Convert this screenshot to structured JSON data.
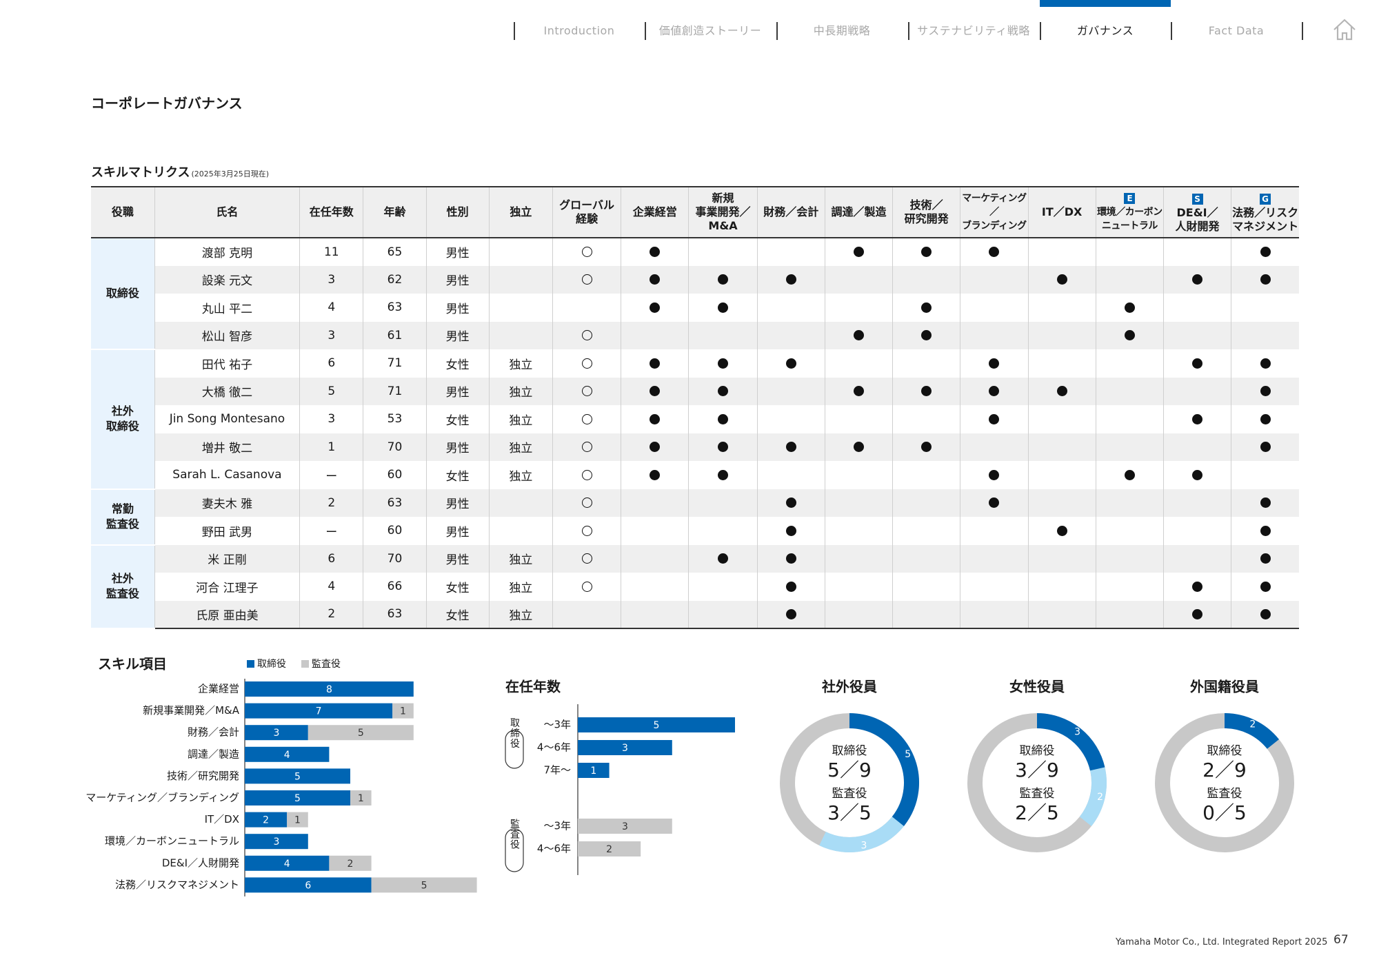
{
  "nav": {
    "tabs": [
      {
        "label": "Introduction"
      },
      {
        "label": "価値創造ストーリー"
      },
      {
        "label": "中長期戦略"
      },
      {
        "label": "サステナビリティ戦略"
      },
      {
        "label": "ガバナンス"
      },
      {
        "label": "Fact Data"
      }
    ],
    "active_index": 4,
    "accent_color": "#0065b3"
  },
  "page_title": "コーポレートガバナンス",
  "matrix": {
    "title": "スキルマトリクス",
    "date_note": "(2025年3月25日現在)",
    "headers": {
      "role": "役職",
      "name": "氏名",
      "tenure": "在任年数",
      "age": "年齢",
      "gender": "性別",
      "independent": "独立",
      "global": [
        "グローバル",
        "経験"
      ],
      "s1": [
        "企業経営"
      ],
      "s2": [
        "新規",
        "事業開発／",
        "M&A"
      ],
      "s3": [
        "財務／会計"
      ],
      "s4": [
        "調達／製造"
      ],
      "s5": [
        "技術／",
        "研究開発"
      ],
      "s6": [
        "マーケティング／",
        "ブランディング"
      ],
      "s7": [
        "IT／DX"
      ],
      "s8": [
        "環境／カーボン",
        "ニュートラル"
      ],
      "s9": [
        "DE&I／",
        "人財開発"
      ],
      "s10": [
        "法務／リスク",
        "マネジメント"
      ],
      "esg_e": "E",
      "esg_s": "S",
      "esg_g": "G"
    },
    "roles": [
      {
        "label": [
          "取締役"
        ],
        "rowspan": 4
      },
      {
        "label": [
          "社外",
          "取締役"
        ],
        "rowspan": 5
      },
      {
        "label": [
          "常勤",
          "監査役"
        ],
        "rowspan": 2
      },
      {
        "label": [
          "社外",
          "監査役"
        ],
        "rowspan": 3
      }
    ],
    "rows": [
      {
        "name": "渡部 克明",
        "tenure": "11",
        "age": "65",
        "gender": "男性",
        "independent": "",
        "global": true,
        "skills": [
          1,
          0,
          0,
          1,
          1,
          1,
          0,
          0,
          0,
          1
        ]
      },
      {
        "name": "設楽 元文",
        "tenure": "3",
        "age": "62",
        "gender": "男性",
        "independent": "",
        "global": true,
        "skills": [
          1,
          1,
          1,
          0,
          0,
          0,
          1,
          0,
          1,
          1
        ]
      },
      {
        "name": "丸山 平二",
        "tenure": "4",
        "age": "63",
        "gender": "男性",
        "independent": "",
        "global": false,
        "skills": [
          1,
          1,
          0,
          0,
          1,
          0,
          0,
          1,
          0,
          0
        ]
      },
      {
        "name": "松山 智彦",
        "tenure": "3",
        "age": "61",
        "gender": "男性",
        "independent": "",
        "global": true,
        "skills": [
          0,
          0,
          0,
          1,
          1,
          0,
          0,
          1,
          0,
          0
        ]
      },
      {
        "name": "田代 祐子",
        "tenure": "6",
        "age": "71",
        "gender": "女性",
        "independent": "独立",
        "global": true,
        "skills": [
          1,
          1,
          1,
          0,
          0,
          1,
          0,
          0,
          1,
          1
        ]
      },
      {
        "name": "大橋 徹二",
        "tenure": "5",
        "age": "71",
        "gender": "男性",
        "independent": "独立",
        "global": true,
        "skills": [
          1,
          1,
          0,
          1,
          1,
          1,
          1,
          0,
          0,
          1
        ]
      },
      {
        "name": "Jin Song Montesano",
        "tenure": "3",
        "age": "53",
        "gender": "女性",
        "independent": "独立",
        "global": true,
        "skills": [
          1,
          1,
          0,
          0,
          0,
          1,
          0,
          0,
          1,
          1
        ]
      },
      {
        "name": "増井 敬二",
        "tenure": "1",
        "age": "70",
        "gender": "男性",
        "independent": "独立",
        "global": true,
        "skills": [
          1,
          1,
          1,
          1,
          1,
          0,
          0,
          0,
          0,
          1
        ]
      },
      {
        "name": "Sarah L. Casanova",
        "tenure": "ー",
        "age": "60",
        "gender": "女性",
        "independent": "独立",
        "global": true,
        "skills": [
          1,
          1,
          0,
          0,
          0,
          1,
          0,
          1,
          1,
          0
        ]
      },
      {
        "name": "妻夫木 雅",
        "tenure": "2",
        "age": "63",
        "gender": "男性",
        "independent": "",
        "global": true,
        "skills": [
          0,
          0,
          1,
          0,
          0,
          1,
          0,
          0,
          0,
          1
        ]
      },
      {
        "name": "野田 武男",
        "tenure": "ー",
        "age": "60",
        "gender": "男性",
        "independent": "",
        "global": true,
        "skills": [
          0,
          0,
          1,
          0,
          0,
          0,
          1,
          0,
          0,
          1
        ]
      },
      {
        "name": "米 正剛",
        "tenure": "6",
        "age": "70",
        "gender": "男性",
        "independent": "独立",
        "global": true,
        "skills": [
          0,
          1,
          1,
          0,
          0,
          0,
          0,
          0,
          0,
          1
        ]
      },
      {
        "name": "河合 江理子",
        "tenure": "4",
        "age": "66",
        "gender": "女性",
        "independent": "独立",
        "global": true,
        "skills": [
          0,
          0,
          1,
          0,
          0,
          0,
          0,
          0,
          1,
          1
        ]
      },
      {
        "name": "氏原 亜由美",
        "tenure": "2",
        "age": "63",
        "gender": "女性",
        "independent": "独立",
        "global": false,
        "skills": [
          0,
          0,
          1,
          0,
          0,
          0,
          0,
          0,
          1,
          1
        ]
      }
    ]
  },
  "colors": {
    "director": "#0065b3",
    "auditor": "#c8c8c8",
    "light_blue": "#a9dcf6",
    "row_alt": "#efefef",
    "role_bg": "#e8f3fd"
  },
  "chart_data": [
    {
      "type": "bar",
      "title": "スキル項目",
      "legend": [
        "取締役",
        "監査役"
      ],
      "categories": [
        "企業経営",
        "新規事業開発／M&A",
        "財務／会計",
        "調達／製造",
        "技術／研究開発",
        "マーケティング／ブランディング",
        "IT／DX",
        "環境／カーボンニュートラル",
        "DE&I／人財開発",
        "法務／リスクマネジメント"
      ],
      "series": [
        {
          "name": "取締役",
          "values": [
            8,
            7,
            3,
            4,
            5,
            5,
            2,
            3,
            4,
            6
          ]
        },
        {
          "name": "監査役",
          "values": [
            0,
            1,
            5,
            0,
            0,
            1,
            1,
            0,
            2,
            5
          ]
        }
      ],
      "stacked": true,
      "orientation": "horizontal"
    },
    {
      "type": "bar",
      "title": "在任年数",
      "groups": [
        {
          "label": "取締役",
          "categories": [
            "～3年",
            "4～6年",
            "7年～"
          ],
          "values": [
            5,
            3,
            1
          ],
          "series": "取締役"
        },
        {
          "label": "監査役",
          "categories": [
            "～3年",
            "4～6年"
          ],
          "values": [
            3,
            2
          ],
          "series": "監査役"
        }
      ],
      "orientation": "horizontal"
    },
    {
      "type": "pie",
      "title": "社外役員",
      "slices": [
        {
          "name": "取締役",
          "value": 5
        },
        {
          "name": "監査役",
          "value": 3
        }
      ],
      "total": 14,
      "center": {
        "l1": "取締役",
        "v1": "5／9",
        "l2": "監査役",
        "v2": "3／5"
      }
    },
    {
      "type": "pie",
      "title": "女性役員",
      "slices": [
        {
          "name": "取締役",
          "value": 3
        },
        {
          "name": "監査役",
          "value": 2
        }
      ],
      "total": 14,
      "center": {
        "l1": "取締役",
        "v1": "3／9",
        "l2": "監査役",
        "v2": "2／5"
      }
    },
    {
      "type": "pie",
      "title": "外国籍役員",
      "slices": [
        {
          "name": "取締役",
          "value": 2
        },
        {
          "name": "監査役",
          "value": 0
        }
      ],
      "total": 14,
      "center": {
        "l1": "取締役",
        "v1": "2／9",
        "l2": "監査役",
        "v2": "0／5"
      }
    }
  ],
  "footer": {
    "report": "Yamaha Motor Co., Ltd. Integrated Report 2025",
    "page": "67"
  }
}
